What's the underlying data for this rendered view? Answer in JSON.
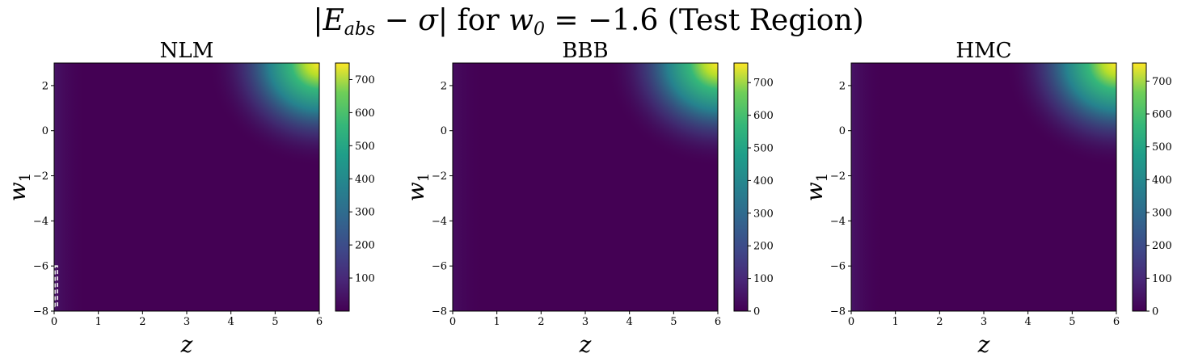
{
  "figure": {
    "suptitle_parts": {
      "bar_left": "|",
      "E": "E",
      "E_sub": "abs",
      "minus": " − ",
      "sigma": "σ",
      "bar_right": "|",
      "for": " for ",
      "w": "w",
      "w_sub": "0",
      "eq": " = −1.6 (Test Region)"
    }
  },
  "chart_data": [
    {
      "type": "heatmap",
      "title": "NLM",
      "xlabel": "z",
      "ylabel": "w",
      "ylabel_sub": "1",
      "xlim": [
        0,
        6
      ],
      "ylim": [
        -8,
        3
      ],
      "xticks": [
        "0",
        "1",
        "2",
        "3",
        "4",
        "5",
        "6"
      ],
      "yticks": [
        "−8",
        "−6",
        "−4",
        "−2",
        "0",
        "2"
      ],
      "colorbar": {
        "vmin": 0,
        "vmax": 750,
        "ticks": [
          "100",
          "200",
          "300",
          "400",
          "500",
          "600",
          "700"
        ]
      },
      "colormap": "viridis",
      "peak_value": 750,
      "peak_location": "top-right",
      "has_dashed_box": true
    },
    {
      "type": "heatmap",
      "title": "BBB",
      "xlabel": "z",
      "ylabel": "w",
      "ylabel_sub": "1",
      "xlim": [
        0,
        6
      ],
      "ylim": [
        -8,
        3
      ],
      "xticks": [
        "0",
        "1",
        "2",
        "3",
        "4",
        "5",
        "6"
      ],
      "yticks": [
        "−8",
        "−6",
        "−4",
        "−2",
        "0",
        "2"
      ],
      "colorbar": {
        "vmin": 0,
        "vmax": 760,
        "ticks": [
          "0",
          "100",
          "200",
          "300",
          "400",
          "500",
          "600",
          "700"
        ]
      },
      "colormap": "viridis",
      "peak_value": 760,
      "peak_location": "top-right",
      "has_dashed_box": false
    },
    {
      "type": "heatmap",
      "title": "HMC",
      "xlabel": "z",
      "ylabel": "w",
      "ylabel_sub": "1",
      "xlim": [
        0,
        6
      ],
      "ylim": [
        -8,
        3
      ],
      "xticks": [
        "0",
        "1",
        "2",
        "3",
        "4",
        "5",
        "6"
      ],
      "yticks": [
        "−8",
        "−6",
        "−4",
        "−2",
        "0",
        "2"
      ],
      "colorbar": {
        "vmin": 0,
        "vmax": 755,
        "ticks": [
          "0",
          "100",
          "200",
          "300",
          "400",
          "500",
          "600",
          "700"
        ]
      },
      "colormap": "viridis",
      "peak_value": 755,
      "peak_location": "top-right",
      "has_dashed_box": false
    }
  ],
  "colors": {
    "viridis_low": "#440154",
    "viridis_mid": "#21918c",
    "viridis_high": "#fde725"
  }
}
